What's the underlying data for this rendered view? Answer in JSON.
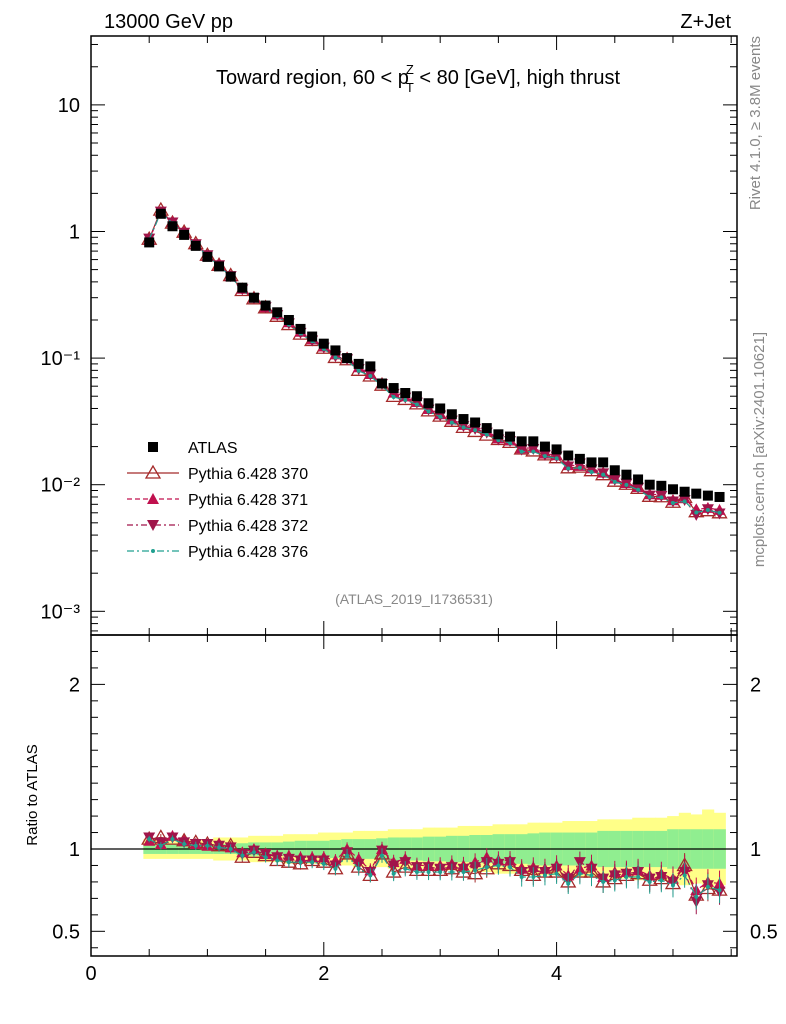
{
  "header": {
    "left": "13000 GeV pp",
    "right": "Z+Jet",
    "title_pre": "Toward region, 60 < p",
    "title_sup": "Z",
    "title_sub": "T",
    "title_post": " < 80 [GeV], high thrust"
  },
  "side_text": {
    "rivet": "Rivet 4.1.0, ≥ 3.8M events",
    "mcplots": "mcplots.cern.ch [arXiv:2401.10621]"
  },
  "analysis_id": "(ATLAS_2019_I1736531)",
  "chart_data": {
    "type": "scatter",
    "title": "Toward region, 60 < pT^Z < 80 [GeV], high thrust",
    "xlabel": "",
    "ylabel_main": "",
    "ylabel_ratio": "Ratio to ATLAS",
    "xlim": [
      0,
      5.55
    ],
    "ylim_main": [
      0.00065,
      35
    ],
    "ylim_ratio": [
      0.35,
      2.3
    ],
    "y_scale_main": "log",
    "x_ticks": [
      "0",
      "2",
      "4"
    ],
    "y_ticks_main": [
      "10",
      "1",
      "10⁻¹",
      "10⁻²",
      "10⁻³"
    ],
    "y_ticks_ratio": [
      "2",
      "1",
      "0.5"
    ],
    "legend_position": "lower-left",
    "legend": [
      "ATLAS",
      "Pythia 6.428 370",
      "Pythia 6.428 371",
      "Pythia 6.428 372",
      "Pythia 6.428 376"
    ],
    "x": [
      0.5,
      0.6,
      0.7,
      0.8,
      0.9,
      1.0,
      1.1,
      1.2,
      1.3,
      1.4,
      1.5,
      1.6,
      1.7,
      1.8,
      1.9,
      2.0,
      2.1,
      2.2,
      2.3,
      2.4,
      2.5,
      2.6,
      2.7,
      2.8,
      2.9,
      3.0,
      3.1,
      3.2,
      3.3,
      3.4,
      3.5,
      3.6,
      3.7,
      3.8,
      3.9,
      4.0,
      4.1,
      4.2,
      4.3,
      4.4,
      4.5,
      4.6,
      4.7,
      4.8,
      4.9,
      5.0,
      5.1,
      5.2,
      5.3,
      5.4
    ],
    "atlas": [
      0.82,
      1.38,
      1.1,
      0.94,
      0.77,
      0.63,
      0.53,
      0.44,
      0.36,
      0.3,
      0.26,
      0.23,
      0.2,
      0.17,
      0.148,
      0.13,
      0.115,
      0.1,
      0.09,
      0.086,
      0.063,
      0.058,
      0.053,
      0.05,
      0.044,
      0.04,
      0.036,
      0.033,
      0.031,
      0.028,
      0.025,
      0.024,
      0.022,
      0.022,
      0.02,
      0.019,
      0.017,
      0.016,
      0.015,
      0.015,
      0.013,
      0.012,
      0.011,
      0.01,
      0.0098,
      0.0092,
      0.0088,
      0.0085,
      0.0082,
      0.008
    ],
    "ratio_series": [
      {
        "name": "Pythia 6.428 370",
        "values": [
          1.06,
          1.07,
          1.06,
          1.05,
          1.04,
          1.03,
          1.02,
          1.02,
          0.95,
          0.98,
          0.96,
          0.93,
          0.92,
          0.91,
          0.93,
          0.92,
          0.88,
          0.97,
          0.89,
          0.84,
          0.97,
          0.86,
          0.89,
          0.87,
          0.87,
          0.87,
          0.88,
          0.86,
          0.85,
          0.88,
          0.91,
          0.9,
          0.87,
          0.84,
          0.86,
          0.86,
          0.8,
          0.86,
          0.86,
          0.8,
          0.82,
          0.84,
          0.85,
          0.81,
          0.82,
          0.79,
          0.9,
          0.72,
          0.76,
          0.75
        ]
      },
      {
        "name": "Pythia 6.428 371",
        "values": [
          1.05,
          1.03,
          1.08,
          1.05,
          1.03,
          1.02,
          1.03,
          1.01,
          0.98,
          1.0,
          0.97,
          0.96,
          0.96,
          0.95,
          0.95,
          0.95,
          0.93,
          1.0,
          0.94,
          0.87,
          1.0,
          0.92,
          0.94,
          0.9,
          0.9,
          0.9,
          0.91,
          0.9,
          0.92,
          0.95,
          0.93,
          0.93,
          0.88,
          0.89,
          0.88,
          0.9,
          0.84,
          0.88,
          0.9,
          0.83,
          0.86,
          0.86,
          0.87,
          0.84,
          0.85,
          0.82,
          0.89,
          0.75,
          0.8,
          0.79
        ]
      },
      {
        "name": "Pythia 6.428 372",
        "values": [
          1.07,
          1.04,
          1.07,
          1.04,
          1.03,
          1.03,
          1.02,
          1.01,
          0.97,
          0.99,
          0.97,
          0.95,
          0.94,
          0.93,
          0.93,
          0.93,
          0.9,
          0.98,
          0.91,
          0.86,
          0.99,
          0.9,
          0.92,
          0.89,
          0.89,
          0.88,
          0.89,
          0.88,
          0.89,
          0.92,
          0.91,
          0.92,
          0.86,
          0.87,
          0.86,
          0.88,
          0.82,
          0.92,
          0.88,
          0.82,
          0.84,
          0.85,
          0.86,
          0.82,
          0.83,
          0.8,
          0.86,
          0.68,
          0.78,
          0.74
        ]
      },
      {
        "name": "Pythia 6.428 376",
        "values": [
          1.06,
          1.02,
          1.06,
          1.03,
          1.02,
          1.02,
          1.01,
          1.0,
          0.96,
          0.98,
          0.95,
          0.93,
          0.92,
          0.92,
          0.92,
          0.91,
          0.88,
          0.96,
          0.88,
          0.84,
          0.96,
          0.85,
          0.88,
          0.86,
          0.86,
          0.86,
          0.86,
          0.86,
          0.87,
          0.89,
          0.9,
          0.89,
          0.83,
          0.83,
          0.84,
          0.85,
          0.79,
          0.85,
          0.84,
          0.8,
          0.81,
          0.83,
          0.83,
          0.8,
          0.81,
          0.78,
          0.84,
          0.71,
          0.77,
          0.75
        ]
      }
    ],
    "band_inner": [
      0.03,
      0.03,
      0.03,
      0.03,
      0.03,
      0.03,
      0.03,
      0.03,
      0.035,
      0.04,
      0.04,
      0.04,
      0.045,
      0.05,
      0.05,
      0.05,
      0.055,
      0.06,
      0.06,
      0.06,
      0.065,
      0.07,
      0.07,
      0.07,
      0.075,
      0.075,
      0.08,
      0.08,
      0.085,
      0.085,
      0.09,
      0.09,
      0.09,
      0.095,
      0.1,
      0.1,
      0.1,
      0.1,
      0.1,
      0.11,
      0.11,
      0.11,
      0.11,
      0.11,
      0.11,
      0.12,
      0.12,
      0.12,
      0.12,
      0.12
    ],
    "band_outer": [
      0.06,
      0.06,
      0.06,
      0.06,
      0.06,
      0.06,
      0.07,
      0.07,
      0.07,
      0.08,
      0.08,
      0.08,
      0.09,
      0.09,
      0.09,
      0.1,
      0.1,
      0.1,
      0.11,
      0.11,
      0.11,
      0.12,
      0.12,
      0.12,
      0.13,
      0.13,
      0.13,
      0.14,
      0.14,
      0.14,
      0.15,
      0.15,
      0.15,
      0.16,
      0.16,
      0.16,
      0.17,
      0.17,
      0.17,
      0.18,
      0.18,
      0.18,
      0.19,
      0.19,
      0.19,
      0.2,
      0.22,
      0.21,
      0.24,
      0.22
    ]
  },
  "colors": {
    "atlas": "#000000",
    "p370": "#a52a2a",
    "p371": "#c0104e",
    "p372": "#a0154a",
    "p376": "#20a090",
    "band_inner": "#90ee90",
    "band_outer": "#ffff88"
  }
}
